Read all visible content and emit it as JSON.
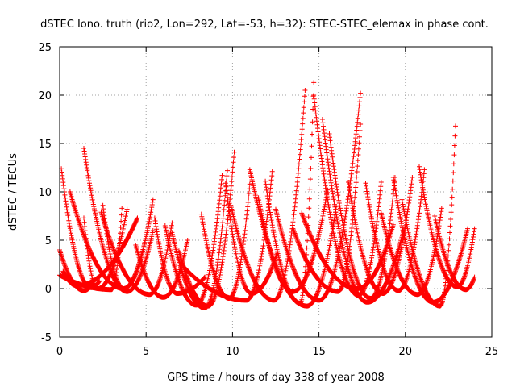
{
  "chart_data": {
    "type": "scatter",
    "title": "dSTEC Iono. truth (rio2, Lon=292, Lat=-53, h=32): STEC-STEC_elemax in phase cont.",
    "xlabel": "GPS time / hours of day 338 of year 2008",
    "ylabel": "dSTEC  / TECUs",
    "xlim": [
      0,
      25
    ],
    "ylim": [
      -5,
      25
    ],
    "xticks": [
      0,
      5,
      10,
      15,
      20,
      25
    ],
    "yticks": [
      -5,
      0,
      5,
      10,
      15,
      20,
      25
    ],
    "grid": true,
    "marker": "plus",
    "color": "#ff0000",
    "series": [
      {
        "start": 0.0,
        "end": 1.9,
        "tmin": 1.4,
        "vmin": -0.2,
        "vstart": 4.0,
        "vend": 0.5
      },
      {
        "start": 0.1,
        "end": 2.3,
        "tmin": 1.8,
        "vmin": 0.1,
        "vstart": 12.4,
        "vend": 0.8
      },
      {
        "start": 0.0,
        "end": 3.6,
        "tmin": 3.0,
        "vmin": -0.1,
        "vstart": 1.4,
        "vend": 8.3
      },
      {
        "start": 0.6,
        "end": 4.9,
        "tmin": 3.7,
        "vmin": 0.0,
        "vstart": 10.0,
        "vend": 4.6
      },
      {
        "start": 1.4,
        "end": 5.4,
        "tmin": 3.9,
        "vmin": -0.3,
        "vstart": 14.5,
        "vend": 6.0
      },
      {
        "start": 0.2,
        "end": 4.5,
        "tmin": 1.0,
        "vmin": 0.3,
        "vstart": 1.8,
        "vend": 7.3
      },
      {
        "start": 1.4,
        "end": 3.9,
        "tmin": 2.2,
        "vmin": 0.0,
        "vstart": 7.3,
        "vend": 8.2
      },
      {
        "start": 2.5,
        "end": 5.4,
        "tmin": 3.7,
        "vmin": 0.0,
        "vstart": 8.6,
        "vend": 9.2
      },
      {
        "start": 2.4,
        "end": 6.5,
        "tmin": 5.2,
        "vmin": -0.6,
        "vstart": 7.9,
        "vend": 6.8
      },
      {
        "start": 4.4,
        "end": 7.4,
        "tmin": 6.0,
        "vmin": -0.9,
        "vstart": 4.5,
        "vend": 5.0
      },
      {
        "start": 5.5,
        "end": 8.4,
        "tmin": 6.8,
        "vmin": -0.5,
        "vstart": 7.3,
        "vend": 1.2
      },
      {
        "start": 6.1,
        "end": 9.4,
        "tmin": 7.9,
        "vmin": -1.7,
        "vstart": 6.5,
        "vend": 11.7
      },
      {
        "start": 6.5,
        "end": 9.7,
        "tmin": 8.4,
        "vmin": -2.0,
        "vstart": 5.8,
        "vend": 12.2
      },
      {
        "start": 6.9,
        "end": 10.1,
        "tmin": 8.6,
        "vmin": -1.8,
        "vstart": 3.9,
        "vend": 14.1
      },
      {
        "start": 8.2,
        "end": 11.0,
        "tmin": 9.8,
        "vmin": -1.0,
        "vstart": 7.7,
        "vend": 10.8
      },
      {
        "start": 7.2,
        "end": 12.3,
        "tmin": 10.8,
        "vmin": -1.2,
        "vstart": 2.2,
        "vend": 12.1
      },
      {
        "start": 9.6,
        "end": 12.6,
        "tmin": 11.1,
        "vmin": -0.5,
        "vstart": 10.9,
        "vend": 3.8
      },
      {
        "start": 9.9,
        "end": 14.2,
        "tmin": 12.4,
        "vmin": -1.2,
        "vstart": 8.6,
        "vend": 20.5
      },
      {
        "start": 11.5,
        "end": 15.5,
        "tmin": 13.5,
        "vmin": -0.3,
        "vstart": 9.4,
        "vend": 10.2
      },
      {
        "start": 11.9,
        "end": 14.7,
        "tmin": 13.9,
        "vmin": -1.5,
        "vstart": 11.1,
        "vend": 21.3
      },
      {
        "start": 11.0,
        "end": 16.0,
        "tmin": 14.3,
        "vmin": -1.8,
        "vstart": 12.3,
        "vend": 8.5
      },
      {
        "start": 12.5,
        "end": 17.4,
        "tmin": 15.0,
        "vmin": -1.2,
        "vstart": 8.2,
        "vend": 20.2
      },
      {
        "start": 13.5,
        "end": 17.4,
        "tmin": 16.1,
        "vmin": -0.3,
        "vstart": 6.2,
        "vend": 17.0
      },
      {
        "start": 14.7,
        "end": 18.6,
        "tmin": 17.3,
        "vmin": -0.7,
        "vstart": 20.0,
        "vend": 11.0
      },
      {
        "start": 15.6,
        "end": 19.4,
        "tmin": 18.0,
        "vmin": -1.0,
        "vstart": 16.0,
        "vend": 11.5
      },
      {
        "start": 15.2,
        "end": 19.9,
        "tmin": 17.8,
        "vmin": -1.4,
        "vstart": 17.5,
        "vend": 6.0
      },
      {
        "start": 14.0,
        "end": 19.3,
        "tmin": 17.2,
        "vmin": 0.0,
        "vstart": 7.8,
        "vend": 6.6
      },
      {
        "start": 16.7,
        "end": 20.4,
        "tmin": 18.7,
        "vmin": -0.5,
        "vstart": 11.0,
        "vend": 11.5
      },
      {
        "start": 17.7,
        "end": 21.1,
        "tmin": 19.6,
        "vmin": -0.2,
        "vstart": 10.9,
        "vend": 12.3
      },
      {
        "start": 18.6,
        "end": 22.1,
        "tmin": 20.7,
        "vmin": -0.6,
        "vstart": 7.8,
        "vend": 8.3
      },
      {
        "start": 19.3,
        "end": 23.6,
        "tmin": 21.6,
        "vmin": -1.4,
        "vstart": 11.5,
        "vend": 6.2
      },
      {
        "start": 19.8,
        "end": 22.9,
        "tmin": 22.0,
        "vmin": -1.8,
        "vstart": 9.2,
        "vend": 16.8
      },
      {
        "start": 20.8,
        "end": 24.0,
        "tmin": 23.0,
        "vmin": 0.2,
        "vstart": 12.6,
        "vend": 6.2
      },
      {
        "start": 21.7,
        "end": 24.0,
        "tmin": 23.5,
        "vmin": -0.1,
        "vstart": 7.5,
        "vend": 1.2
      }
    ]
  }
}
